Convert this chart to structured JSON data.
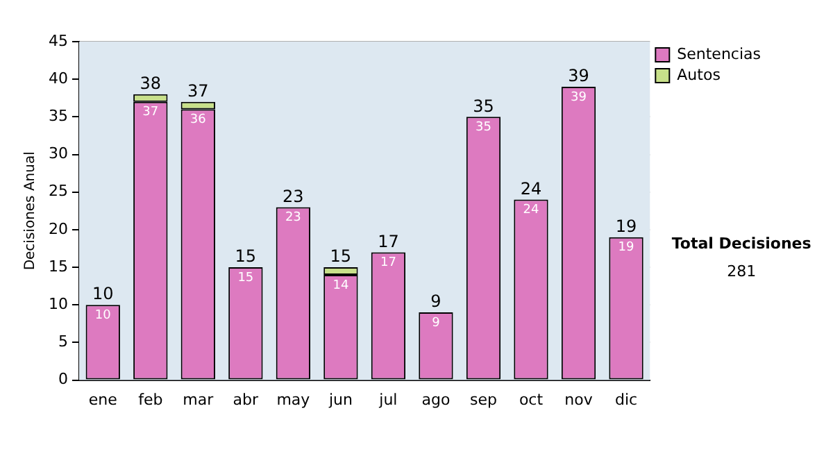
{
  "chart_data": {
    "type": "bar",
    "stacked": true,
    "ylabel": "Decisiones Anual",
    "categories": [
      "ene",
      "feb",
      "mar",
      "abr",
      "may",
      "jun",
      "jul",
      "ago",
      "sep",
      "oct",
      "nov",
      "dic"
    ],
    "series": [
      {
        "name": "Sentencias",
        "color": "#dd7ac0",
        "values": [
          10,
          37,
          36,
          15,
          23,
          14,
          17,
          9,
          35,
          24,
          39,
          19
        ],
        "value_labels": [
          "10",
          "37",
          "36",
          "15",
          "23",
          "14",
          "17",
          "9",
          "35",
          "24",
          "39",
          "19"
        ]
      },
      {
        "name": "Autos",
        "color": "#c8e08a",
        "values": [
          0,
          1,
          1,
          0,
          0,
          1,
          0,
          0,
          0,
          0,
          0,
          0
        ]
      }
    ],
    "totals": [
      "10",
      "38",
      "37",
      "15",
      "23",
      "15",
      "17",
      "9",
      "35",
      "24",
      "39",
      "19"
    ],
    "ylim": [
      0,
      45
    ],
    "yticks": [
      0,
      5,
      10,
      15,
      20,
      25,
      30,
      35,
      40,
      45
    ],
    "grid": "y",
    "legend": "right",
    "annotations": [
      "Total Decisiones",
      "281"
    ]
  }
}
